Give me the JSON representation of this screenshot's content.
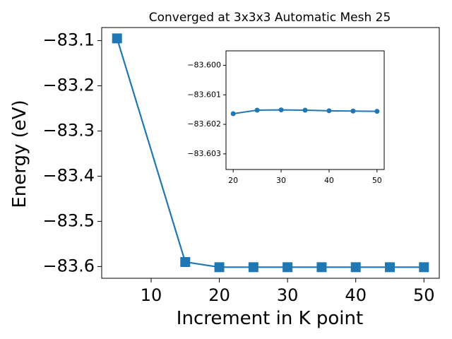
{
  "chart_data": [
    {
      "type": "line",
      "title": "Converged at 3x3x3 Automatic Mesh 25",
      "xlabel": "Increment in K point",
      "ylabel": "Energy (eV)",
      "xlim": [
        2.75,
        52.25
      ],
      "ylim": [
        -83.626,
        -83.071
      ],
      "xticks": [
        10,
        20,
        30,
        40,
        50
      ],
      "xtick_labels": [
        "10",
        "20",
        "30",
        "40",
        "50"
      ],
      "yticks": [
        -83.6,
        -83.5,
        -83.4,
        -83.3,
        -83.2,
        -83.1
      ],
      "ytick_labels": [
        "−83.6",
        "−83.5",
        "−83.4",
        "−83.3",
        "−83.2",
        "−83.1"
      ],
      "marker": "square",
      "color": "#1f77b4",
      "grid": false,
      "series": [
        {
          "x": [
            5,
            15,
            20,
            25,
            30,
            35,
            40,
            45,
            50
          ],
          "y": [
            -83.095,
            -83.59,
            -83.6015,
            -83.6015,
            -83.6015,
            -83.6015,
            -83.6015,
            -83.6015,
            -83.6015
          ]
        }
      ]
    },
    {
      "type": "line",
      "role": "inset",
      "xlim": [
        18.5,
        51.5
      ],
      "ylim": [
        -83.60353,
        -83.59951
      ],
      "xticks": [
        20,
        30,
        40,
        50
      ],
      "xtick_labels": [
        "20",
        "30",
        "40",
        "50"
      ],
      "yticks": [
        -83.603,
        -83.602,
        -83.601,
        -83.6
      ],
      "ytick_labels": [
        "−83.603",
        "−83.602",
        "−83.601",
        "−83.600"
      ],
      "marker": "circle",
      "color": "#1f77b4",
      "grid": false,
      "series": [
        {
          "x": [
            20,
            25,
            30,
            35,
            40,
            45,
            50
          ],
          "y": [
            -83.60164,
            -83.60152,
            -83.60151,
            -83.60152,
            -83.60154,
            -83.60155,
            -83.60156
          ]
        }
      ]
    }
  ]
}
